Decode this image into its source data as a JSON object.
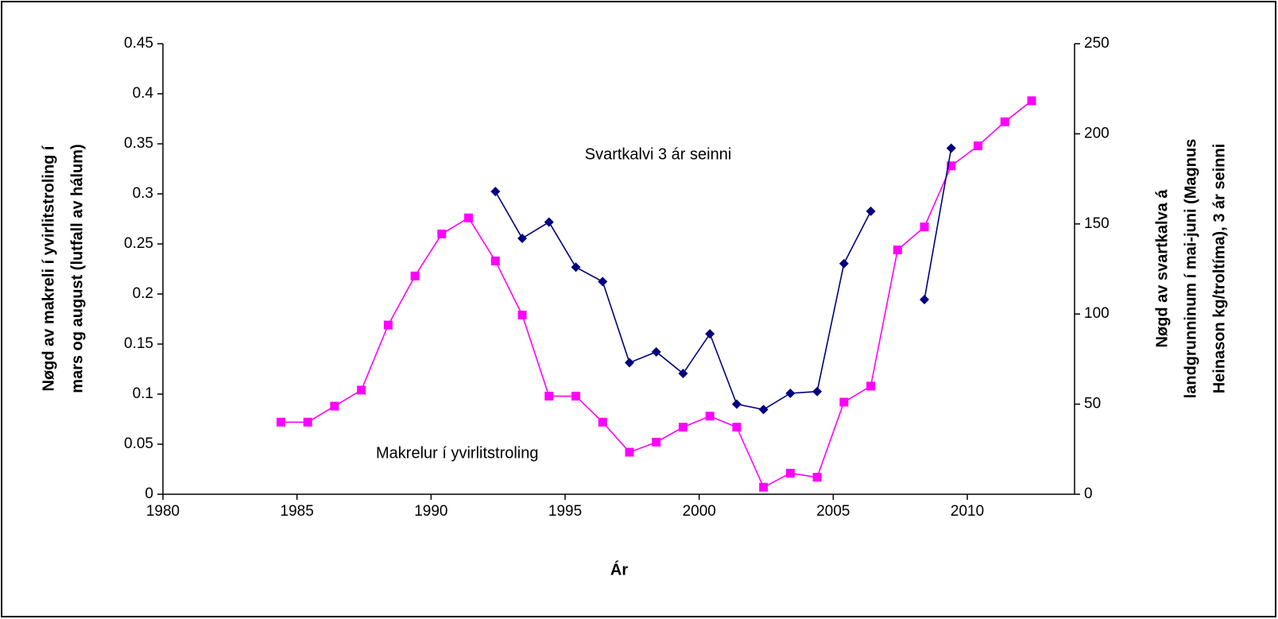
{
  "chart_data": {
    "type": "line",
    "xlabel": "Ár",
    "ylabel": [
      "Nøgd av makreli í yvirlitstroling í",
      "mars og august (lutfall av hálum)"
    ],
    "y2label": [
      "Nøgd av svartkalva á",
      "landgrunninum í mai-juni (Magnus",
      "Heinason kg/troltíma), 3 ár seinni"
    ],
    "xlim": [
      1980,
      2014
    ],
    "xticks": [
      1980,
      1985,
      1990,
      1995,
      2000,
      2005,
      2010
    ],
    "ylim": [
      0,
      0.45
    ],
    "yticks": [
      0,
      0.05,
      0.1,
      0.15,
      0.2,
      0.25,
      0.3,
      0.35,
      0.4,
      0.45
    ],
    "y2lim": [
      0,
      250
    ],
    "y2ticks": [
      0,
      50,
      100,
      150,
      200,
      250
    ],
    "grid": false,
    "series": [
      {
        "name": "Makrelur í yvirlitstroling",
        "color": "#ff00ff",
        "marker": "square",
        "axis": "y",
        "x": [
          1984.4,
          1985.4,
          1986.4,
          1987.4,
          1988.4,
          1989.4,
          1990.4,
          1991.4,
          1992.4,
          1993.4,
          1994.4,
          1995.4,
          1996.4,
          1997.4,
          1998.4,
          1999.4,
          2000.4,
          2001.4,
          2002.4,
          2003.4,
          2004.4,
          2005.4,
          2006.4,
          2007.4,
          2008.4,
          2009.4,
          2010.4,
          2011.4,
          2012.4
        ],
        "values": [
          0.072,
          0.072,
          0.088,
          0.104,
          0.169,
          0.218,
          0.26,
          0.276,
          0.233,
          0.179,
          0.098,
          0.098,
          0.072,
          0.042,
          0.052,
          0.067,
          0.078,
          0.067,
          0.007,
          0.021,
          0.017,
          0.092,
          0.108,
          0.244,
          0.267,
          0.328,
          0.348,
          0.372,
          0.393
        ]
      },
      {
        "name": "Svartkalvi 3 ár seinni",
        "color": "#000080",
        "marker": "diamond",
        "axis": "y2",
        "x": [
          1992.4,
          1993.4,
          1994.4,
          1995.4,
          1996.4,
          1997.4,
          1998.4,
          1999.4,
          2000.4,
          2001.4,
          2002.4,
          2003.4,
          2004.4,
          2005.4,
          2006.4,
          2007.4,
          2008.4,
          2009.4
        ],
        "values": [
          168,
          142,
          151,
          126,
          118,
          73,
          79,
          67,
          89,
          50,
          47,
          56,
          57,
          128,
          157,
          null,
          108,
          192
        ]
      }
    ]
  }
}
